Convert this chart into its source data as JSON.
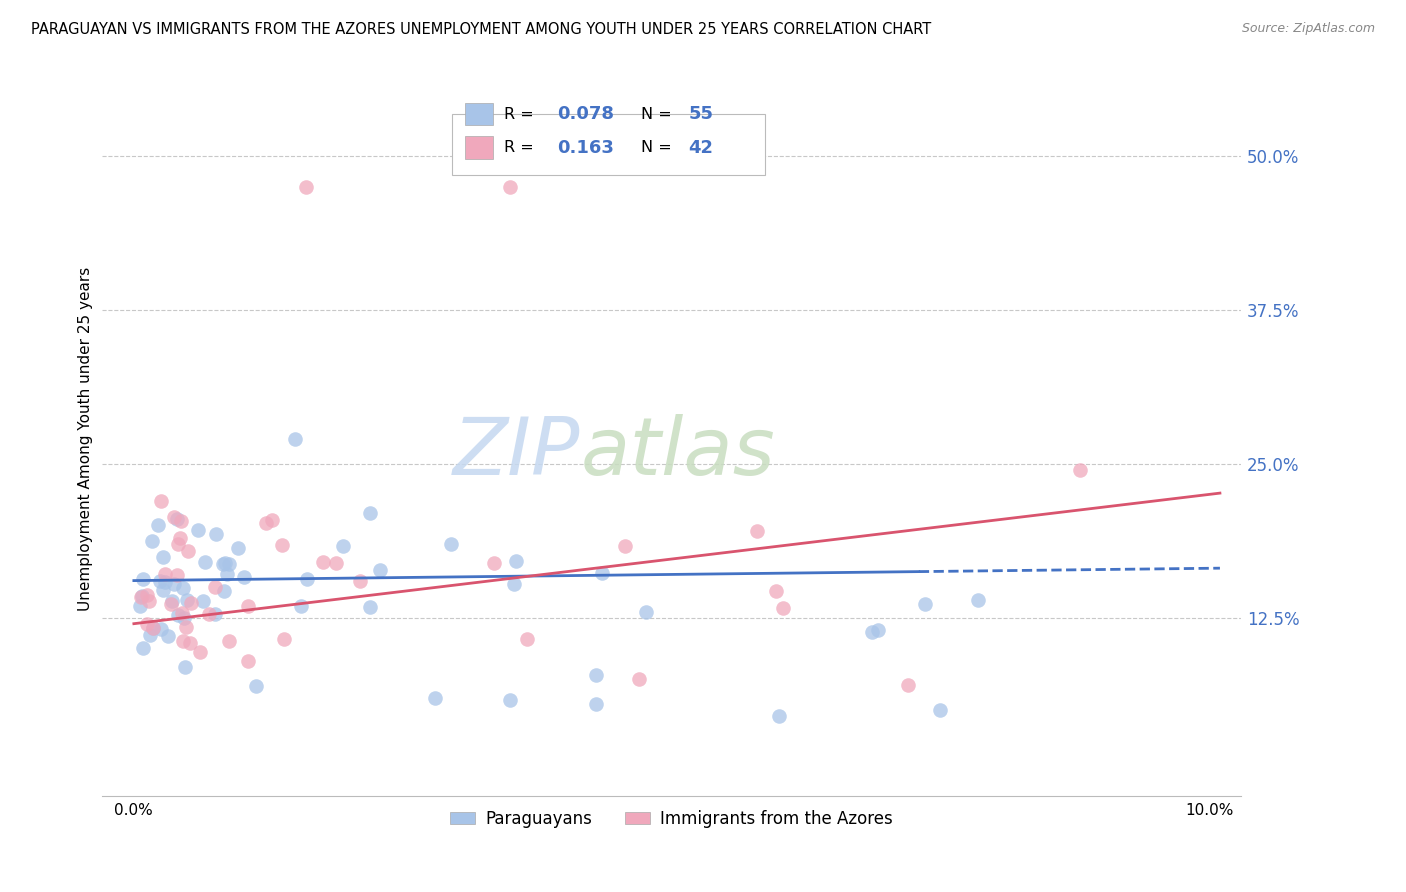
{
  "title": "PARAGUAYAN VS IMMIGRANTS FROM THE AZORES UNEMPLOYMENT AMONG YOUTH UNDER 25 YEARS CORRELATION CHART",
  "source": "Source: ZipAtlas.com",
  "ylabel": "Unemployment Among Youth under 25 years",
  "right_ytick_labels": [
    "50.0%",
    "37.5%",
    "25.0%",
    "12.5%"
  ],
  "right_ytick_values": [
    0.5,
    0.375,
    0.25,
    0.125
  ],
  "ylim": [
    0.0,
    0.55
  ],
  "xlim": [
    -0.002,
    0.102
  ],
  "blue_color": "#a8c4e8",
  "pink_color": "#f0a8bc",
  "blue_line_color": "#4472c4",
  "pink_line_color": "#d9546e",
  "legend_r1_val": "0.078",
  "legend_n1_val": "55",
  "legend_r2_val": "0.163",
  "legend_n2_val": "42",
  "par_x": [
    0.001,
    0.001,
    0.001,
    0.002,
    0.002,
    0.002,
    0.002,
    0.003,
    0.003,
    0.003,
    0.003,
    0.004,
    0.004,
    0.004,
    0.004,
    0.005,
    0.005,
    0.005,
    0.005,
    0.006,
    0.006,
    0.006,
    0.007,
    0.007,
    0.007,
    0.008,
    0.008,
    0.009,
    0.009,
    0.01,
    0.01,
    0.011,
    0.012,
    0.012,
    0.013,
    0.014,
    0.015,
    0.016,
    0.017,
    0.018,
    0.019,
    0.021,
    0.022,
    0.023,
    0.025,
    0.027,
    0.028,
    0.03,
    0.034,
    0.037,
    0.042,
    0.043,
    0.06,
    0.075,
    0.085
  ],
  "par_y": [
    0.155,
    0.145,
    0.135,
    0.165,
    0.15,
    0.14,
    0.125,
    0.16,
    0.15,
    0.14,
    0.13,
    0.155,
    0.145,
    0.135,
    0.125,
    0.16,
    0.15,
    0.135,
    0.12,
    0.155,
    0.145,
    0.135,
    0.215,
    0.16,
    0.14,
    0.21,
    0.165,
    0.195,
    0.155,
    0.2,
    0.155,
    0.175,
    0.185,
    0.155,
    0.155,
    0.15,
    0.27,
    0.16,
    0.165,
    0.16,
    0.165,
    0.165,
    0.155,
    0.16,
    0.155,
    0.16,
    0.065,
    0.055,
    0.065,
    0.055,
    0.06,
    0.16,
    0.155,
    0.05,
    0.155
  ],
  "az_x": [
    0.001,
    0.001,
    0.001,
    0.002,
    0.002,
    0.002,
    0.003,
    0.003,
    0.003,
    0.004,
    0.004,
    0.005,
    0.005,
    0.005,
    0.006,
    0.006,
    0.007,
    0.007,
    0.007,
    0.008,
    0.008,
    0.009,
    0.01,
    0.01,
    0.011,
    0.012,
    0.013,
    0.014,
    0.017,
    0.02,
    0.022,
    0.024,
    0.032,
    0.042,
    0.048,
    0.052,
    0.06,
    0.07,
    0.075,
    0.085,
    0.088,
    0.092
  ],
  "az_y": [
    0.155,
    0.145,
    0.13,
    0.165,
    0.15,
    0.135,
    0.16,
    0.145,
    0.13,
    0.155,
    0.14,
    0.165,
    0.15,
    0.13,
    0.16,
    0.14,
    0.215,
    0.2,
    0.155,
    0.205,
    0.155,
    0.155,
    0.24,
    0.165,
    0.145,
    0.155,
    0.22,
    0.475,
    0.215,
    0.475,
    0.155,
    0.2,
    0.105,
    0.16,
    0.075,
    0.155,
    0.185,
    0.2,
    0.195,
    0.2,
    0.25,
    0.1
  ]
}
